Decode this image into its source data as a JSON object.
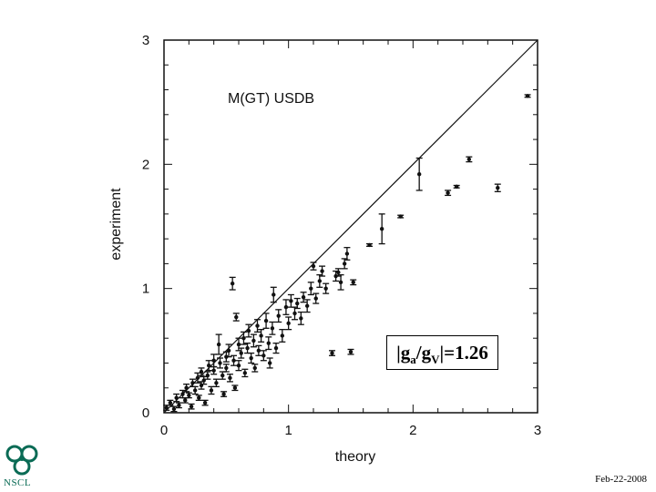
{
  "chart_data": {
    "type": "scatter",
    "title": "",
    "annotation": "M(GT) USDB",
    "xlabel": "theory",
    "ylabel": "experiment",
    "xlim": [
      0,
      3
    ],
    "ylim": [
      0,
      3
    ],
    "x_ticks": [
      "0",
      "1",
      "2",
      "3"
    ],
    "y_ticks": [
      "0",
      "1",
      "2",
      "3"
    ],
    "reference_line": "y = x",
    "grid": false,
    "error_bars": true,
    "points": [
      {
        "x": 0.02,
        "y": 0.04,
        "e": 0.02
      },
      {
        "x": 0.05,
        "y": 0.08,
        "e": 0.02
      },
      {
        "x": 0.08,
        "y": 0.03,
        "e": 0.02
      },
      {
        "x": 0.1,
        "y": 0.12,
        "e": 0.03
      },
      {
        "x": 0.12,
        "y": 0.06,
        "e": 0.02
      },
      {
        "x": 0.15,
        "y": 0.15,
        "e": 0.03
      },
      {
        "x": 0.17,
        "y": 0.1,
        "e": 0.02
      },
      {
        "x": 0.18,
        "y": 0.2,
        "e": 0.03
      },
      {
        "x": 0.2,
        "y": 0.14,
        "e": 0.02
      },
      {
        "x": 0.22,
        "y": 0.05,
        "e": 0.02
      },
      {
        "x": 0.23,
        "y": 0.24,
        "e": 0.03
      },
      {
        "x": 0.25,
        "y": 0.18,
        "e": 0.03
      },
      {
        "x": 0.27,
        "y": 0.28,
        "e": 0.04
      },
      {
        "x": 0.28,
        "y": 0.12,
        "e": 0.02
      },
      {
        "x": 0.3,
        "y": 0.22,
        "e": 0.03
      },
      {
        "x": 0.3,
        "y": 0.33,
        "e": 0.03
      },
      {
        "x": 0.32,
        "y": 0.26,
        "e": 0.03
      },
      {
        "x": 0.33,
        "y": 0.08,
        "e": 0.02
      },
      {
        "x": 0.35,
        "y": 0.3,
        "e": 0.03
      },
      {
        "x": 0.36,
        "y": 0.38,
        "e": 0.04
      },
      {
        "x": 0.38,
        "y": 0.18,
        "e": 0.03
      },
      {
        "x": 0.4,
        "y": 0.34,
        "e": 0.03
      },
      {
        "x": 0.4,
        "y": 0.42,
        "e": 0.05
      },
      {
        "x": 0.42,
        "y": 0.24,
        "e": 0.03
      },
      {
        "x": 0.44,
        "y": 0.55,
        "e": 0.08
      },
      {
        "x": 0.45,
        "y": 0.4,
        "e": 0.04
      },
      {
        "x": 0.47,
        "y": 0.3,
        "e": 0.03
      },
      {
        "x": 0.48,
        "y": 0.15,
        "e": 0.02
      },
      {
        "x": 0.5,
        "y": 0.45,
        "e": 0.04
      },
      {
        "x": 0.5,
        "y": 0.36,
        "e": 0.03
      },
      {
        "x": 0.52,
        "y": 0.5,
        "e": 0.05
      },
      {
        "x": 0.53,
        "y": 0.28,
        "e": 0.03
      },
      {
        "x": 0.55,
        "y": 1.04,
        "e": 0.05
      },
      {
        "x": 0.56,
        "y": 0.42,
        "e": 0.04
      },
      {
        "x": 0.57,
        "y": 0.2,
        "e": 0.02
      },
      {
        "x": 0.58,
        "y": 0.77,
        "e": 0.03
      },
      {
        "x": 0.6,
        "y": 0.55,
        "e": 0.05
      },
      {
        "x": 0.6,
        "y": 0.38,
        "e": 0.04
      },
      {
        "x": 0.62,
        "y": 0.48,
        "e": 0.04
      },
      {
        "x": 0.64,
        "y": 0.6,
        "e": 0.05
      },
      {
        "x": 0.65,
        "y": 0.32,
        "e": 0.03
      },
      {
        "x": 0.67,
        "y": 0.52,
        "e": 0.04
      },
      {
        "x": 0.68,
        "y": 0.66,
        "e": 0.05
      },
      {
        "x": 0.7,
        "y": 0.44,
        "e": 0.04
      },
      {
        "x": 0.72,
        "y": 0.58,
        "e": 0.05
      },
      {
        "x": 0.73,
        "y": 0.36,
        "e": 0.03
      },
      {
        "x": 0.75,
        "y": 0.7,
        "e": 0.05
      },
      {
        "x": 0.76,
        "y": 0.5,
        "e": 0.04
      },
      {
        "x": 0.78,
        "y": 0.62,
        "e": 0.05
      },
      {
        "x": 0.8,
        "y": 0.46,
        "e": 0.04
      },
      {
        "x": 0.82,
        "y": 0.74,
        "e": 0.06
      },
      {
        "x": 0.84,
        "y": 0.56,
        "e": 0.05
      },
      {
        "x": 0.85,
        "y": 0.4,
        "e": 0.04
      },
      {
        "x": 0.87,
        "y": 0.68,
        "e": 0.05
      },
      {
        "x": 0.88,
        "y": 0.95,
        "e": 0.06
      },
      {
        "x": 0.9,
        "y": 0.52,
        "e": 0.04
      },
      {
        "x": 0.92,
        "y": 0.78,
        "e": 0.05
      },
      {
        "x": 0.95,
        "y": 0.62,
        "e": 0.05
      },
      {
        "x": 0.98,
        "y": 0.85,
        "e": 0.06
      },
      {
        "x": 1.0,
        "y": 0.72,
        "e": 0.05
      },
      {
        "x": 1.02,
        "y": 0.9,
        "e": 0.05
      },
      {
        "x": 1.05,
        "y": 0.8,
        "e": 0.05
      },
      {
        "x": 1.07,
        "y": 0.88,
        "e": 0.04
      },
      {
        "x": 1.1,
        "y": 0.76,
        "e": 0.05
      },
      {
        "x": 1.12,
        "y": 0.93,
        "e": 0.04
      },
      {
        "x": 1.15,
        "y": 0.86,
        "e": 0.05
      },
      {
        "x": 1.18,
        "y": 1.0,
        "e": 0.05
      },
      {
        "x": 1.2,
        "y": 1.18,
        "e": 0.03
      },
      {
        "x": 1.22,
        "y": 0.92,
        "e": 0.04
      },
      {
        "x": 1.25,
        "y": 1.06,
        "e": 0.05
      },
      {
        "x": 1.27,
        "y": 1.14,
        "e": 0.04
      },
      {
        "x": 1.3,
        "y": 1.0,
        "e": 0.04
      },
      {
        "x": 1.35,
        "y": 0.48,
        "e": 0.02
      },
      {
        "x": 1.38,
        "y": 1.1,
        "e": 0.04
      },
      {
        "x": 1.4,
        "y": 1.13,
        "e": 0.03
      },
      {
        "x": 1.42,
        "y": 1.05,
        "e": 0.06
      },
      {
        "x": 1.45,
        "y": 1.2,
        "e": 0.04
      },
      {
        "x": 1.47,
        "y": 1.28,
        "e": 0.05
      },
      {
        "x": 1.5,
        "y": 0.49,
        "e": 0.02
      },
      {
        "x": 1.52,
        "y": 1.05,
        "e": 0.02
      },
      {
        "x": 1.65,
        "y": 1.35,
        "e": 0.01
      },
      {
        "x": 1.75,
        "y": 1.48,
        "e": 0.12
      },
      {
        "x": 1.9,
        "y": 1.58,
        "e": 0.01
      },
      {
        "x": 2.05,
        "y": 1.92,
        "e": 0.13
      },
      {
        "x": 2.28,
        "y": 1.77,
        "e": 0.02
      },
      {
        "x": 2.35,
        "y": 1.82,
        "e": 0.01
      },
      {
        "x": 2.45,
        "y": 2.04,
        "e": 0.02
      },
      {
        "x": 2.68,
        "y": 1.81,
        "e": 0.03
      },
      {
        "x": 2.92,
        "y": 2.55,
        "e": 0.01
      }
    ]
  },
  "overlay": {
    "ratio_label": {
      "pre": "|g",
      "sub1": "a",
      "mid": "/g",
      "sub2": "V",
      "post": "|=1.26"
    },
    "logo_text": "NSCL",
    "date": "Feb-22-2008"
  },
  "colors": {
    "ink": "#111111",
    "logo": "#0a6b55"
  }
}
